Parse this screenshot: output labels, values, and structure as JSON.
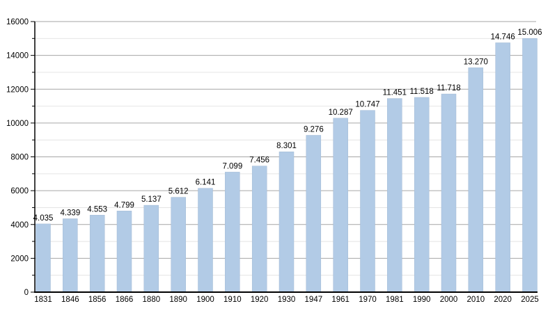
{
  "chart_data": {
    "type": "bar",
    "title": "",
    "xlabel": "",
    "ylabel": "",
    "categories": [
      "1831",
      "1846",
      "1856",
      "1866",
      "1880",
      "1890",
      "1900",
      "1910",
      "1920",
      "1930",
      "1947",
      "1961",
      "1970",
      "1981",
      "1990",
      "2000",
      "2010",
      "2020",
      "2025"
    ],
    "values": [
      4035,
      4339,
      4553,
      4799,
      5137,
      5612,
      6141,
      7099,
      7456,
      8301,
      9276,
      10287,
      10747,
      11451,
      11518,
      11718,
      13270,
      14746,
      15006
    ],
    "value_labels": [
      "4.035",
      "4.339",
      "4.553",
      "4.799",
      "5.137",
      "5.612",
      "6.141",
      "7.099",
      "7.456",
      "8.301",
      "9.276",
      "10.287",
      "10.747",
      "11.451",
      "11.518",
      "11.718",
      "13.270",
      "14.746",
      "15.006"
    ],
    "ylim": [
      0,
      16000
    ],
    "y_major_step": 2000,
    "y_minor_step": 1000,
    "y_tick_labels": [
      "0",
      "2000",
      "4000",
      "6000",
      "8000",
      "10000",
      "12000",
      "14000",
      "16000"
    ],
    "grid": true,
    "legend_position": "none",
    "colors": {
      "bar_fill": "#b2cbe6",
      "bar_border": "#a2bad4",
      "major_grid": "#a6a6a6",
      "minor_grid": "#e4e4e4",
      "axis": "#000000",
      "text": "#000000",
      "background": "#ffffff"
    }
  }
}
